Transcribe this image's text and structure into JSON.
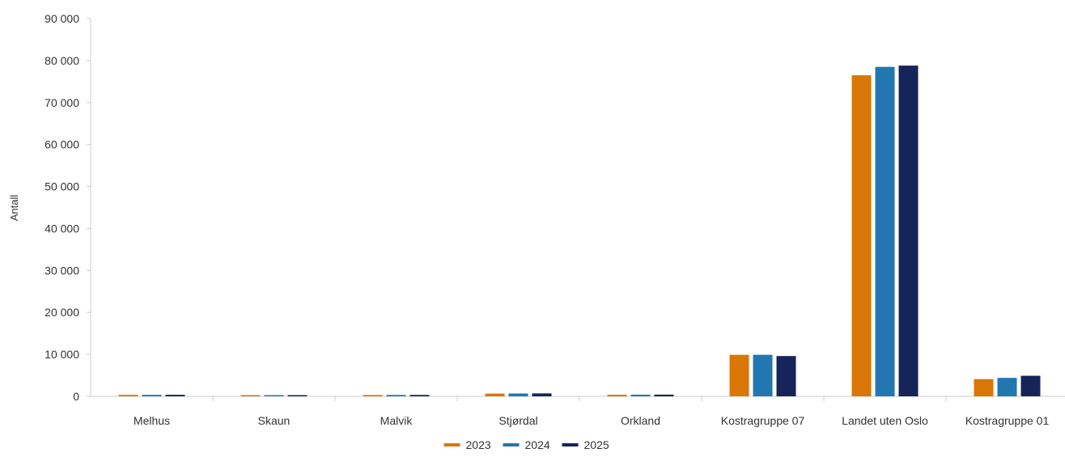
{
  "chart_data": {
    "type": "bar",
    "ylabel": "Antall",
    "ylim": [
      0,
      90000
    ],
    "yticks": [
      0,
      10000,
      20000,
      30000,
      40000,
      50000,
      60000,
      70000,
      80000,
      90000
    ],
    "ytick_labels": [
      "0",
      "10 000",
      "20 000",
      "30 000",
      "40 000",
      "50 000",
      "60 000",
      "70 000",
      "80 000",
      "90 000"
    ],
    "categories": [
      "Melhus",
      "Skaun",
      "Malvik",
      "Stjørdal",
      "Orkland",
      "Kostragruppe 07",
      "Landet uten Oslo",
      "Kostragruppe 01"
    ],
    "series": [
      {
        "name": "2023",
        "color": "#d97706",
        "values": [
          350,
          150,
          320,
          650,
          380,
          9900,
          76500,
          4100
        ]
      },
      {
        "name": "2024",
        "color": "#2277b0",
        "values": [
          360,
          160,
          330,
          680,
          400,
          9900,
          78500,
          4400
        ]
      },
      {
        "name": "2025",
        "color": "#17245a",
        "values": [
          370,
          170,
          340,
          700,
          410,
          9600,
          78800,
          4900
        ]
      }
    ],
    "legend_position": "bottom-center",
    "grid": false
  }
}
